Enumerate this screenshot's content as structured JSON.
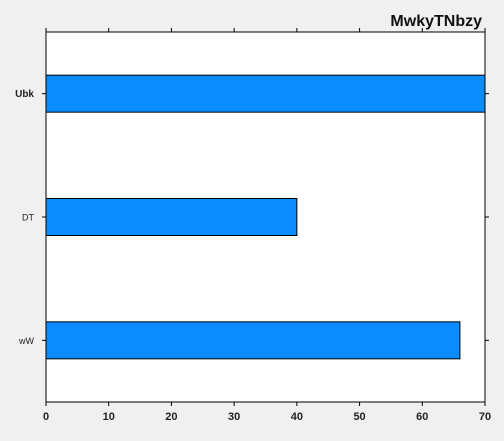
{
  "chart_data": {
    "type": "bar",
    "orientation": "horizontal",
    "title": "MwkyTNbzy",
    "categories": [
      "Ubk",
      "DT",
      "wW"
    ],
    "values": [
      70,
      40,
      66
    ],
    "xlim": [
      0,
      70
    ],
    "xticks": [
      0,
      10,
      20,
      30,
      40,
      50,
      60,
      70
    ],
    "bar_color": "#0a8cff",
    "grid": false,
    "legend": "none"
  }
}
